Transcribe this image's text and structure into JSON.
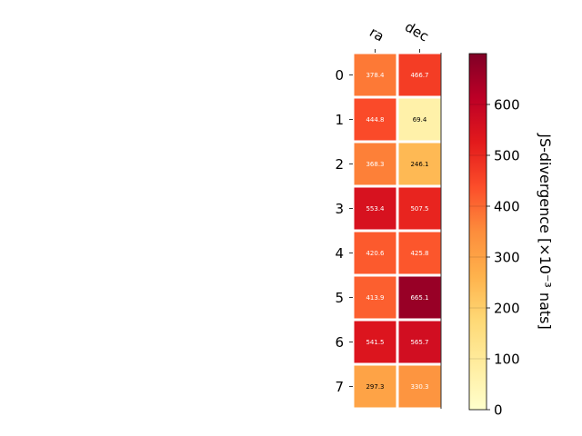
{
  "chart_data": {
    "type": "heatmap",
    "columns": [
      "ra",
      "dec"
    ],
    "rows": [
      "0",
      "1",
      "2",
      "3",
      "4",
      "5",
      "6",
      "7"
    ],
    "values": [
      [
        378.4,
        466.7
      ],
      [
        444.8,
        69.4
      ],
      [
        368.3,
        246.1
      ],
      [
        553.4,
        507.5
      ],
      [
        420.6,
        425.8
      ],
      [
        413.9,
        665.1
      ],
      [
        541.5,
        565.7
      ],
      [
        297.3,
        330.3
      ]
    ],
    "colorbar": {
      "label": "JS-divergence [×10⁻³ nats]",
      "range": [
        0,
        700
      ],
      "ticks": [
        0,
        100,
        200,
        300,
        400,
        500,
        600
      ]
    },
    "colormap": {
      "name": "YlOrRd",
      "stops": [
        "#ffffcc",
        "#ffeda0",
        "#fed976",
        "#feb24c",
        "#fd8d3c",
        "#fc4e2a",
        "#e31a1c",
        "#bd0026",
        "#800026"
      ]
    },
    "annotation_text_colors": {
      "light": "#ffffff",
      "dark": "#000000"
    },
    "grid": false
  }
}
